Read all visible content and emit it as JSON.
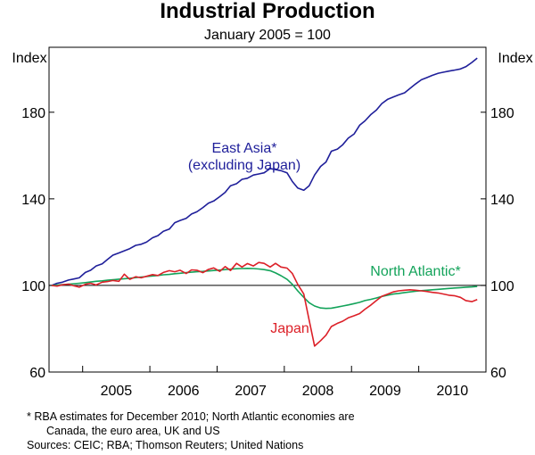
{
  "chart_data": {
    "type": "line",
    "title": "Industrial Production",
    "subtitle": "January 2005 = 100",
    "ylabel_left": "Index",
    "ylabel_right": "Index",
    "ylim": [
      60,
      210
    ],
    "yticks": [
      60,
      100,
      140,
      180
    ],
    "xlim": [
      2004.5,
      2011.0
    ],
    "xticks": [
      "2005",
      "2006",
      "2007",
      "2008",
      "2009",
      "2010"
    ],
    "reference_line": 100,
    "series": [
      {
        "name": "East Asia*",
        "label_line2": "(excluding Japan)",
        "color": "#1f1f9a",
        "x": [
          2004.54,
          2004.62,
          2004.7,
          2004.79,
          2004.87,
          2004.95,
          2005.04,
          2005.12,
          2005.2,
          2005.29,
          2005.37,
          2005.45,
          2005.54,
          2005.62,
          2005.7,
          2005.79,
          2005.87,
          2005.95,
          2006.04,
          2006.12,
          2006.2,
          2006.29,
          2006.37,
          2006.45,
          2006.54,
          2006.62,
          2006.7,
          2006.79,
          2006.87,
          2006.95,
          2007.04,
          2007.12,
          2007.2,
          2007.29,
          2007.37,
          2007.45,
          2007.54,
          2007.62,
          2007.7,
          2007.79,
          2007.87,
          2007.95,
          2008.04,
          2008.12,
          2008.2,
          2008.29,
          2008.37,
          2008.45,
          2008.54,
          2008.62,
          2008.7,
          2008.79,
          2008.87,
          2008.95,
          2009.04,
          2009.12,
          2009.2,
          2009.29,
          2009.37,
          2009.45,
          2009.54,
          2009.62,
          2009.7,
          2009.79,
          2009.87,
          2009.95,
          2010.04,
          2010.12,
          2010.2,
          2010.29,
          2010.37,
          2010.45,
          2010.54,
          2010.62,
          2010.7,
          2010.79,
          2010.87
        ],
        "values": [
          100,
          101,
          101.5,
          102.5,
          103,
          103.5,
          106,
          107,
          109,
          110,
          112,
          114,
          115,
          116,
          117,
          118.5,
          119,
          120,
          122,
          123,
          125,
          126,
          129,
          130,
          131,
          133,
          134,
          136,
          138,
          139,
          141,
          143,
          146,
          147,
          149,
          149.5,
          151,
          151.5,
          152,
          154,
          153.5,
          153,
          152,
          148,
          145,
          144,
          146,
          151,
          155,
          157,
          162,
          163,
          165,
          168,
          170,
          174,
          176,
          179,
          181,
          184,
          186,
          187,
          188,
          189,
          191,
          193,
          195,
          196,
          197,
          198,
          198.5,
          199,
          199.5,
          200,
          201,
          203,
          205
        ]
      },
      {
        "name": "North Atlantic*",
        "color": "#13a35a",
        "x": [
          2004.54,
          2004.62,
          2004.7,
          2004.79,
          2004.87,
          2004.95,
          2005.04,
          2005.12,
          2005.2,
          2005.29,
          2005.37,
          2005.45,
          2005.54,
          2005.62,
          2005.7,
          2005.79,
          2005.87,
          2005.95,
          2006.04,
          2006.12,
          2006.2,
          2006.29,
          2006.37,
          2006.45,
          2006.54,
          2006.62,
          2006.7,
          2006.79,
          2006.87,
          2006.95,
          2007.04,
          2007.12,
          2007.2,
          2007.29,
          2007.37,
          2007.45,
          2007.54,
          2007.62,
          2007.7,
          2007.79,
          2007.87,
          2007.95,
          2008.04,
          2008.12,
          2008.2,
          2008.29,
          2008.37,
          2008.45,
          2008.54,
          2008.62,
          2008.7,
          2008.79,
          2008.87,
          2008.95,
          2009.04,
          2009.12,
          2009.2,
          2009.29,
          2009.37,
          2009.45,
          2009.54,
          2009.62,
          2009.7,
          2009.79,
          2009.87,
          2009.95,
          2010.04,
          2010.12,
          2010.2,
          2010.29,
          2010.37,
          2010.45,
          2010.54,
          2010.62,
          2010.7,
          2010.79,
          2010.87
        ],
        "values": [
          100,
          100.2,
          100.4,
          100.6,
          100.8,
          101,
          101.3,
          101.6,
          101.9,
          102.1,
          102.4,
          102.6,
          102.9,
          103.1,
          103.3,
          103.6,
          103.9,
          104.1,
          104.4,
          104.6,
          104.9,
          105.1,
          105.4,
          105.6,
          105.9,
          106.1,
          106.3,
          106.5,
          106.7,
          106.9,
          107.1,
          107.3,
          107.5,
          107.7,
          107.8,
          107.9,
          107.8,
          107.6,
          107.3,
          106.8,
          105.8,
          104.5,
          102.8,
          100.5,
          97.5,
          94.5,
          92,
          90.5,
          89.6,
          89.4,
          89.5,
          90,
          90.5,
          91,
          91.6,
          92.2,
          93,
          93.6,
          94.2,
          94.9,
          95.5,
          96,
          96.3,
          96.7,
          97,
          97.3,
          97.6,
          97.8,
          98,
          98.2,
          98.4,
          98.6,
          98.8,
          99,
          99.2,
          99.3,
          99.5
        ]
      },
      {
        "name": "Japan",
        "color": "#dc2028",
        "x": [
          2004.54,
          2004.62,
          2004.7,
          2004.79,
          2004.87,
          2004.95,
          2005.04,
          2005.12,
          2005.2,
          2005.29,
          2005.37,
          2005.45,
          2005.54,
          2005.62,
          2005.7,
          2005.79,
          2005.87,
          2005.95,
          2006.04,
          2006.12,
          2006.2,
          2006.29,
          2006.37,
          2006.45,
          2006.54,
          2006.62,
          2006.7,
          2006.79,
          2006.87,
          2006.95,
          2007.04,
          2007.12,
          2007.2,
          2007.29,
          2007.37,
          2007.45,
          2007.54,
          2007.62,
          2007.7,
          2007.79,
          2007.87,
          2007.95,
          2008.04,
          2008.12,
          2008.2,
          2008.29,
          2008.37,
          2008.45,
          2008.54,
          2008.62,
          2008.7,
          2008.79,
          2008.87,
          2008.95,
          2009.04,
          2009.12,
          2009.2,
          2009.29,
          2009.37,
          2009.45,
          2009.54,
          2009.62,
          2009.7,
          2009.79,
          2009.87,
          2009.95,
          2010.04,
          2010.12,
          2010.2,
          2010.29,
          2010.37,
          2010.45,
          2010.54,
          2010.62,
          2010.7,
          2010.79,
          2010.87
        ],
        "values": [
          100,
          99.7,
          100.3,
          100.6,
          99.8,
          99.2,
          100.5,
          101,
          100.2,
          101.5,
          101.8,
          102.3,
          101.9,
          105.2,
          102.8,
          104,
          103.5,
          104.2,
          105,
          104.6,
          106,
          106.8,
          106.3,
          107,
          105.5,
          107.2,
          107,
          105.9,
          107.4,
          108.1,
          106.5,
          108.7,
          106.9,
          110.2,
          108.5,
          110.1,
          109,
          110.6,
          110.2,
          108.5,
          110.2,
          108.5,
          108,
          105.5,
          100.5,
          96,
          84,
          72,
          74.5,
          77,
          81,
          82.5,
          83.5,
          85,
          86,
          87,
          89,
          91,
          93,
          95,
          96,
          97,
          97.5,
          97.8,
          98,
          97.8,
          97.5,
          97.2,
          96.8,
          96.5,
          96,
          95.5,
          95.2,
          94.5,
          93,
          92.5,
          93.5
        ]
      }
    ]
  },
  "footnotes": {
    "line1": "*    RBA estimates for December 2010; North Atlantic economies are",
    "line2": "Canada, the euro area, UK and US",
    "sources": "Sources: CEIC; RBA; Thomson Reuters; United Nations"
  }
}
